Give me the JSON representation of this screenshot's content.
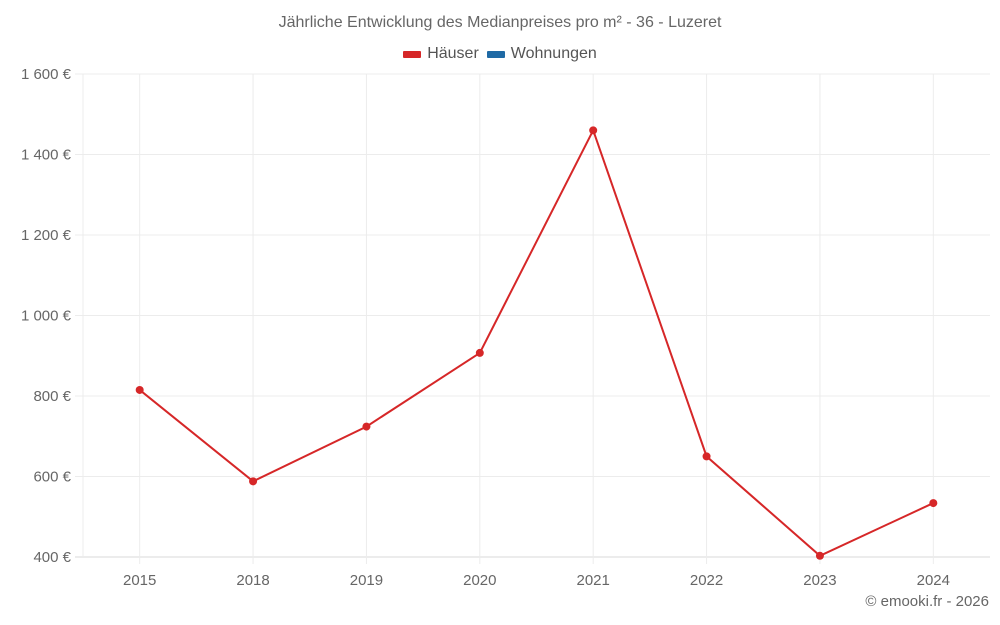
{
  "chart": {
    "title": "Jährliche Entwicklung des Medianpreises pro m² - 36 - Luzeret",
    "credit": "© emooki.fr - 2026",
    "legend": [
      {
        "label": "Häuser",
        "color": "#d62728"
      },
      {
        "label": "Wohnungen",
        "color": "#1f6aa5"
      }
    ]
  },
  "chart_data": {
    "type": "line",
    "title": "Jährliche Entwicklung des Medianpreises pro m² - 36 - Luzeret",
    "xlabel": "",
    "ylabel": "",
    "categories": [
      "2015",
      "2018",
      "2019",
      "2020",
      "2021",
      "2022",
      "2023",
      "2024"
    ],
    "series": [
      {
        "name": "Häuser",
        "color": "#d62728",
        "values": [
          815,
          588,
          724,
          907,
          1460,
          650,
          403,
          534
        ]
      },
      {
        "name": "Wohnungen",
        "color": "#1f6aa5",
        "values": []
      }
    ],
    "ylim": [
      400,
      1600
    ],
    "yticks": [
      400,
      600,
      800,
      1000,
      1200,
      1400,
      1600
    ],
    "ytick_labels": [
      "400 €",
      "600 €",
      "800 €",
      "1 000 €",
      "1 200 €",
      "1 400 €",
      "1 600 €"
    ],
    "grid": true,
    "legend_position": "top"
  }
}
